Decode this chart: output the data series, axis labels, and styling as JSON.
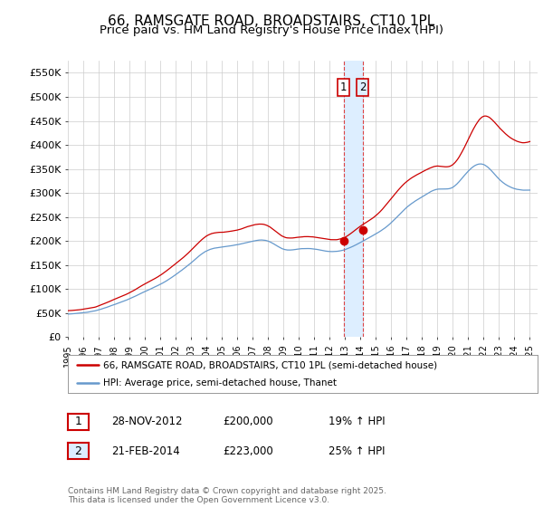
{
  "title": "66, RAMSGATE ROAD, BROADSTAIRS, CT10 1PL",
  "subtitle": "Price paid vs. HM Land Registry's House Price Index (HPI)",
  "ylabel_ticks": [
    "£0",
    "£50K",
    "£100K",
    "£150K",
    "£200K",
    "£250K",
    "£300K",
    "£350K",
    "£400K",
    "£450K",
    "£500K",
    "£550K"
  ],
  "ytick_values": [
    0,
    50000,
    100000,
    150000,
    200000,
    250000,
    300000,
    350000,
    400000,
    450000,
    500000,
    550000
  ],
  "ylim": [
    0,
    575000
  ],
  "legend_line1": "66, RAMSGATE ROAD, BROADSTAIRS, CT10 1PL (semi-detached house)",
  "legend_line2": "HPI: Average price, semi-detached house, Thanet",
  "line1_color": "#cc0000",
  "line2_color": "#6699cc",
  "annotation1_label": "1",
  "annotation1_date": "28-NOV-2012",
  "annotation1_price": "£200,000",
  "annotation1_hpi": "19% ↑ HPI",
  "annotation2_label": "2",
  "annotation2_date": "21-FEB-2014",
  "annotation2_price": "£223,000",
  "annotation2_hpi": "25% ↑ HPI",
  "sale1_x": 2012.91,
  "sale1_y": 200000,
  "sale2_x": 2014.13,
  "sale2_y": 223000,
  "vline1_x": 2012.91,
  "vline2_x": 2014.13,
  "vline_color": "#dd4444",
  "vshade_color": "#ddeeff",
  "box1_facecolor": "#ffffff",
  "box2_facecolor": "#ddeeff",
  "box_edgecolor": "#cc0000",
  "footer": "Contains HM Land Registry data © Crown copyright and database right 2025.\nThis data is licensed under the Open Government Licence v3.0.",
  "background_color": "#ffffff",
  "grid_color": "#cccccc",
  "xmin": 1995,
  "xmax": 2025.5,
  "title_fontsize": 11,
  "subtitle_fontsize": 9.5
}
